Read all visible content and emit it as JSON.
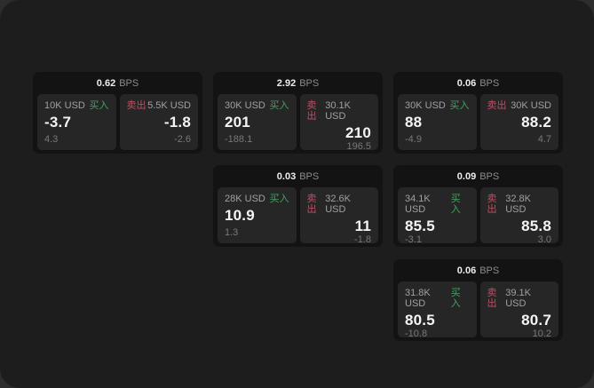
{
  "colors": {
    "buy_green": "#45a162",
    "sell_red": "#bf4e63",
    "panel_bg": "#262626",
    "card_bg": "#131313",
    "page_bg": "#1d1d1d"
  },
  "cards": [
    {
      "bps_value": "0.62",
      "bps_unit": "BPS",
      "buy": {
        "amount": "10K USD",
        "side_label": "买入",
        "value": "-3.7",
        "sub": "4.3"
      },
      "sell": {
        "side_label": "卖出",
        "amount": "5.5K USD",
        "value": "-1.8",
        "sub": "-2.6"
      }
    },
    {
      "bps_value": "2.92",
      "bps_unit": "BPS",
      "buy": {
        "amount": "30K USD",
        "side_label": "买入",
        "value": "201",
        "sub": "-188.1"
      },
      "sell": {
        "side_label": "卖出",
        "amount": "30.1K USD",
        "value": "210",
        "sub": "196.5"
      }
    },
    {
      "bps_value": "0.06",
      "bps_unit": "BPS",
      "buy": {
        "amount": "30K USD",
        "side_label": "买入",
        "value": "88",
        "sub": "-4.9"
      },
      "sell": {
        "side_label": "卖出",
        "amount": "30K USD",
        "value": "88.2",
        "sub": "4.7"
      }
    },
    {
      "bps_value": "0.03",
      "bps_unit": "BPS",
      "buy": {
        "amount": "28K USD",
        "side_label": "买入",
        "value": "10.9",
        "sub": "1.3"
      },
      "sell": {
        "side_label": "卖出",
        "amount": "32.6K USD",
        "value": "11",
        "sub": "-1.8"
      }
    },
    {
      "bps_value": "0.09",
      "bps_unit": "BPS",
      "buy": {
        "amount": "34.1K USD",
        "side_label": "买入",
        "value": "85.5",
        "sub": "-3.1"
      },
      "sell": {
        "side_label": "卖出",
        "amount": "32.8K USD",
        "value": "85.8",
        "sub": "3.0"
      }
    },
    {
      "bps_value": "0.06",
      "bps_unit": "BPS",
      "buy": {
        "amount": "31.8K USD",
        "side_label": "买入",
        "value": "80.5",
        "sub": "-10.8"
      },
      "sell": {
        "side_label": "卖出",
        "amount": "39.1K USD",
        "value": "80.7",
        "sub": "10.2"
      }
    }
  ]
}
